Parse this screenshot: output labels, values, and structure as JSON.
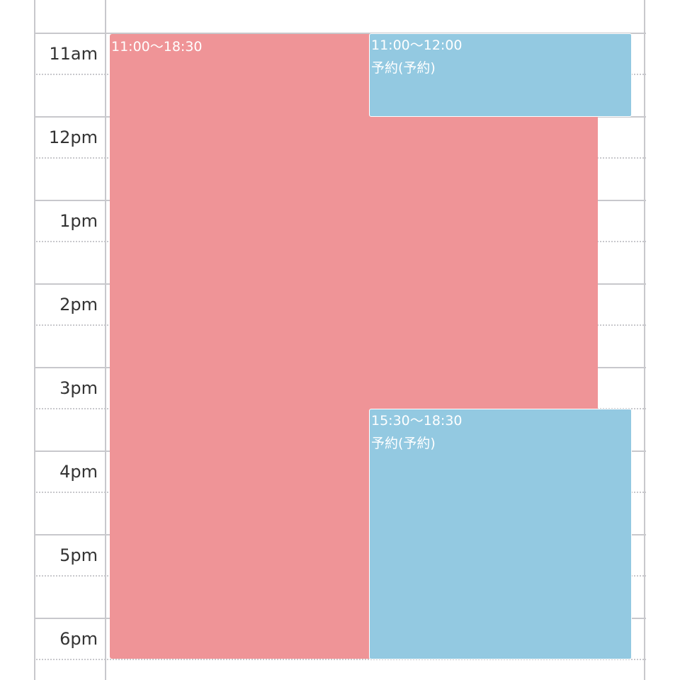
{
  "time_labels": [
    "11am",
    "12pm",
    "1pm",
    "2pm",
    "3pm",
    "4pm",
    "5pm",
    "6pm"
  ],
  "events": [
    {
      "time": "11:00〜18:30"
    },
    {
      "time": "11:00〜12:00",
      "title": "予約(予約)"
    },
    {
      "time": "15:30〜18:30",
      "title": "予約(予約)"
    }
  ]
}
